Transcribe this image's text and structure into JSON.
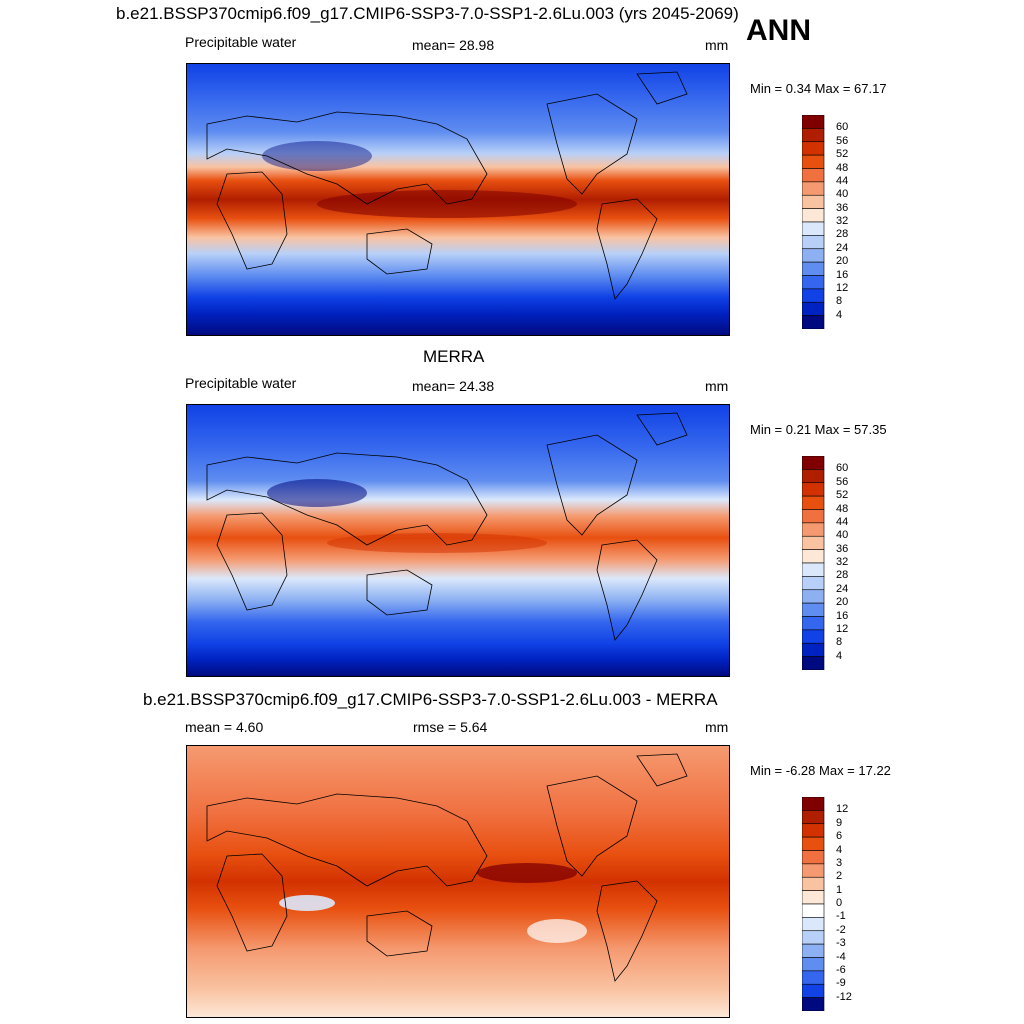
{
  "header": {
    "main_title": "b.e21.BSSP370cmip6.f09_g17.CMIP6-SSP3-7.0-SSP1-2.6Lu.003 (yrs 2045-2069)",
    "season": "ANN"
  },
  "panels": [
    {
      "title": "",
      "left_label": "Precipitable water",
      "center_label": "mean=  28.98",
      "right_label": "mm",
      "minmax": "Min =   0.34 Max =  67.17",
      "colorbar": {
        "ticks": [
          "60",
          "56",
          "52",
          "48",
          "44",
          "40",
          "36",
          "32",
          "28",
          "24",
          "20",
          "16",
          "12",
          "8",
          "4"
        ],
        "colors": [
          "#800000",
          "#b01e00",
          "#d23200",
          "#e85010",
          "#f07040",
          "#f59a70",
          "#f9c3a2",
          "#fde8d8",
          "#dbe8fb",
          "#b8d0f8",
          "#8cb0f2",
          "#5f8df0",
          "#3466ee",
          "#1042e6",
          "#0022c0",
          "#000a80"
        ]
      }
    },
    {
      "title": "MERRA",
      "left_label": "Precipitable water",
      "center_label": "mean=  24.38",
      "right_label": "mm",
      "minmax": "Min =   0.21 Max =  57.35",
      "colorbar": {
        "ticks": [
          "60",
          "56",
          "52",
          "48",
          "44",
          "40",
          "36",
          "32",
          "28",
          "24",
          "20",
          "16",
          "12",
          "8",
          "4"
        ],
        "colors": [
          "#800000",
          "#b01e00",
          "#d23200",
          "#e85010",
          "#f07040",
          "#f59a70",
          "#f9c3a2",
          "#fde8d8",
          "#dbe8fb",
          "#b8d0f8",
          "#8cb0f2",
          "#5f8df0",
          "#3466ee",
          "#1042e6",
          "#0022c0",
          "#000a80"
        ]
      }
    },
    {
      "title": "b.e21.BSSP370cmip6.f09_g17.CMIP6-SSP3-7.0-SSP1-2.6Lu.003 - MERRA",
      "left_label": "mean =   4.60",
      "center_label": "rmse =   5.64",
      "right_label": "mm",
      "minmax": "Min =  -6.28 Max =  17.22",
      "colorbar": {
        "ticks": [
          "12",
          "9",
          "6",
          "4",
          "3",
          "2",
          "1",
          "0",
          "-1",
          "-2",
          "-3",
          "-4",
          "-6",
          "-9",
          "-12"
        ],
        "colors": [
          "#800000",
          "#b01e00",
          "#d23200",
          "#e85010",
          "#f07040",
          "#f59a70",
          "#f9c3a2",
          "#fde8d8",
          "#ffffff",
          "#dbe8fb",
          "#b8d0f8",
          "#8cb0f2",
          "#5f8df0",
          "#3466ee",
          "#1042e6",
          "#000a80"
        ]
      }
    }
  ]
}
